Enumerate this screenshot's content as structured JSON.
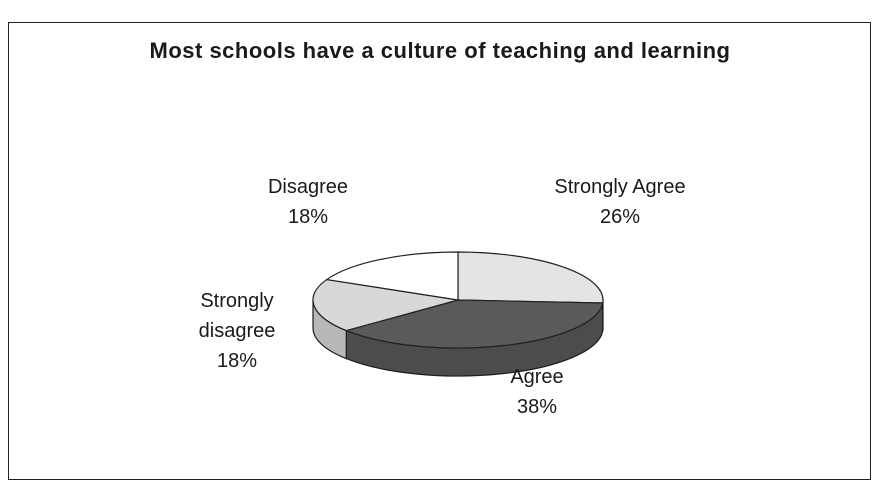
{
  "chart_data": {
    "type": "pie3d",
    "title": "Most schools have a culture of teaching and learning",
    "categories": [
      "Strongly Agree",
      "Agree",
      "Strongly disagree",
      "Disagree"
    ],
    "values": [
      26,
      38,
      18,
      18
    ],
    "value_labels": [
      "26%",
      "38%",
      "18%",
      "18%"
    ],
    "colors": [
      "#e4e4e4",
      "#5a5a5a",
      "#d8d8d8",
      "#ffffff"
    ]
  }
}
